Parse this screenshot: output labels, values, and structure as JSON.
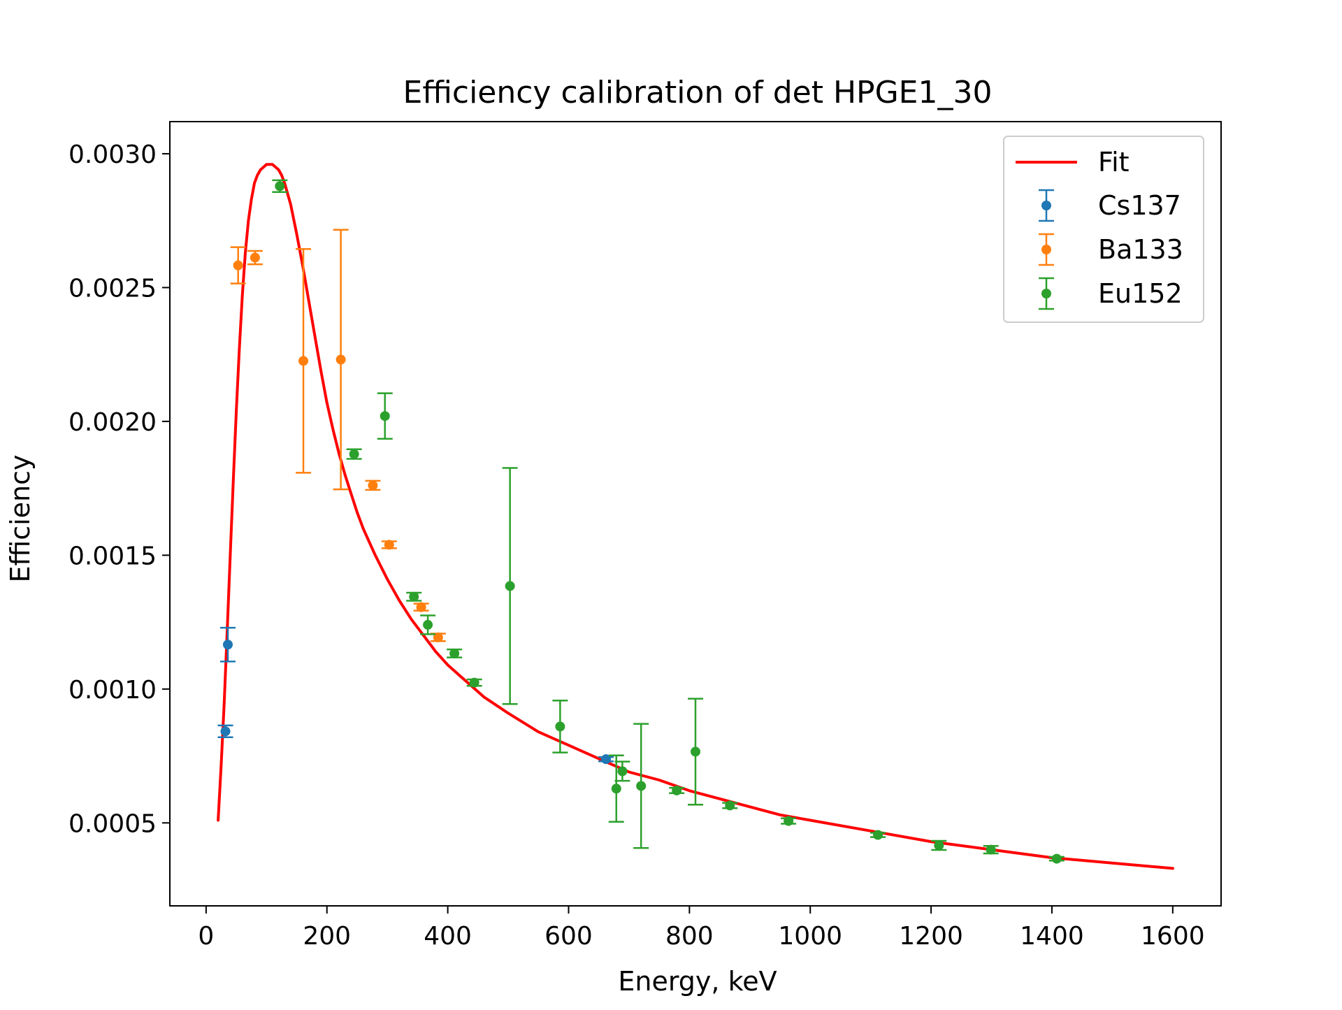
{
  "chart_data": {
    "type": "scatter",
    "title": "Efficiency calibration of det HPGE1_30",
    "xlabel": "Energy, keV",
    "ylabel": "Efficiency",
    "xlim": [
      -60,
      1680
    ],
    "ylim": [
      0.00019,
      0.00312
    ],
    "x_ticks": [
      0,
      200,
      400,
      600,
      800,
      1000,
      1200,
      1400,
      1600
    ],
    "x_tick_labels": [
      "0",
      "200",
      "400",
      "600",
      "800",
      "1000",
      "1200",
      "1400",
      "1600"
    ],
    "y_ticks": [
      0.0005,
      0.001,
      0.0015,
      0.002,
      0.0025,
      0.003
    ],
    "y_tick_labels": [
      "0.0005",
      "0.0010",
      "0.0015",
      "0.0020",
      "0.0025",
      "0.0030"
    ],
    "grid": false,
    "legend_position": "top-right",
    "legend": [
      "Fit",
      "Cs137",
      "Ba133",
      "Eu152"
    ],
    "fit": {
      "name": "Fit",
      "color": "#ff0000",
      "x": [
        20,
        25,
        30,
        35,
        40,
        45,
        50,
        55,
        60,
        65,
        70,
        75,
        80,
        85,
        90,
        95,
        100,
        105,
        110,
        115,
        120,
        125,
        130,
        140,
        150,
        160,
        170,
        180,
        190,
        200,
        210,
        220,
        230,
        240,
        250,
        260,
        280,
        300,
        320,
        340,
        360,
        380,
        400,
        420,
        440,
        460,
        480,
        500,
        550,
        600,
        650,
        700,
        750,
        800,
        850,
        900,
        950,
        1000,
        1100,
        1200,
        1300,
        1400,
        1500,
        1600
      ],
      "y": [
        0.00051,
        0.00072,
        0.00095,
        0.00122,
        0.0015,
        0.00178,
        0.00204,
        0.00227,
        0.00247,
        0.00263,
        0.00275,
        0.00283,
        0.00289,
        0.00292,
        0.00294,
        0.00295,
        0.00296,
        0.00296,
        0.00296,
        0.00295,
        0.00294,
        0.00292,
        0.00289,
        0.00281,
        0.0027,
        0.00258,
        0.00245,
        0.00232,
        0.00219,
        0.00207,
        0.00197,
        0.00188,
        0.0018,
        0.00173,
        0.00166,
        0.0016,
        0.0015,
        0.00141,
        0.00133,
        0.00126,
        0.0012,
        0.00114,
        0.00109,
        0.00105,
        0.00101,
        0.00097,
        0.00094,
        0.00091,
        0.00084,
        0.00079,
        0.00074,
        0.00069,
        0.00066,
        0.00062,
        0.00059,
        0.00056,
        0.00053,
        0.00051,
        0.00047,
        0.00043,
        0.0004,
        0.00037,
        0.00035,
        0.00033
      ]
    },
    "series": [
      {
        "name": "Cs137",
        "color": "#1f77b4",
        "points": [
          {
            "x": 32,
            "y": 0.000842,
            "err": 2.2e-05
          },
          {
            "x": 36,
            "y": 0.001166,
            "err": 6.3e-05
          },
          {
            "x": 662,
            "y": 0.000738,
            "err": 8e-06
          }
        ]
      },
      {
        "name": "Ba133",
        "color": "#ff7f0e",
        "points": [
          {
            "x": 53,
            "y": 0.002583,
            "err": 6.8e-05
          },
          {
            "x": 81,
            "y": 0.002612,
            "err": 2.5e-05
          },
          {
            "x": 161,
            "y": 0.002226,
            "err": 0.000418
          },
          {
            "x": 223,
            "y": 0.002231,
            "err": 0.000485
          },
          {
            "x": 276,
            "y": 0.001761,
            "err": 1.7e-05
          },
          {
            "x": 303,
            "y": 0.001539,
            "err": 1.3e-05
          },
          {
            "x": 356,
            "y": 0.001306,
            "err": 1.3e-05
          },
          {
            "x": 384,
            "y": 0.001193,
            "err": 1.4e-05
          }
        ]
      },
      {
        "name": "Eu152",
        "color": "#2ca02c",
        "points": [
          {
            "x": 122,
            "y": 0.002879,
            "err": 2.2e-05
          },
          {
            "x": 245,
            "y": 0.001878,
            "err": 1.8e-05
          },
          {
            "x": 296,
            "y": 0.00202,
            "err": 8.5e-05
          },
          {
            "x": 344,
            "y": 0.001345,
            "err": 1.5e-05
          },
          {
            "x": 367,
            "y": 0.00124,
            "err": 3.5e-05
          },
          {
            "x": 411,
            "y": 0.001133,
            "err": 1.5e-05
          },
          {
            "x": 444,
            "y": 0.001024,
            "err": 1.2e-05
          },
          {
            "x": 503,
            "y": 0.001385,
            "err": 0.000441
          },
          {
            "x": 586,
            "y": 0.00086,
            "err": 9.7e-05
          },
          {
            "x": 679,
            "y": 0.000628,
            "err": 0.000124
          },
          {
            "x": 689,
            "y": 0.000693,
            "err": 3.6e-05
          },
          {
            "x": 720,
            "y": 0.000638,
            "err": 0.000232
          },
          {
            "x": 779,
            "y": 0.000621,
            "err": 1e-05
          },
          {
            "x": 810,
            "y": 0.000766,
            "err": 0.000198
          },
          {
            "x": 867,
            "y": 0.000565,
            "err": 1e-05
          },
          {
            "x": 964,
            "y": 0.000507,
            "err": 1e-05
          },
          {
            "x": 1112,
            "y": 0.000455,
            "err": 8e-06
          },
          {
            "x": 1213,
            "y": 0.000416,
            "err": 1.7e-05
          },
          {
            "x": 1299,
            "y": 0.0004,
            "err": 1.4e-05
          },
          {
            "x": 1408,
            "y": 0.000366,
            "err": 7e-06
          }
        ]
      }
    ]
  }
}
